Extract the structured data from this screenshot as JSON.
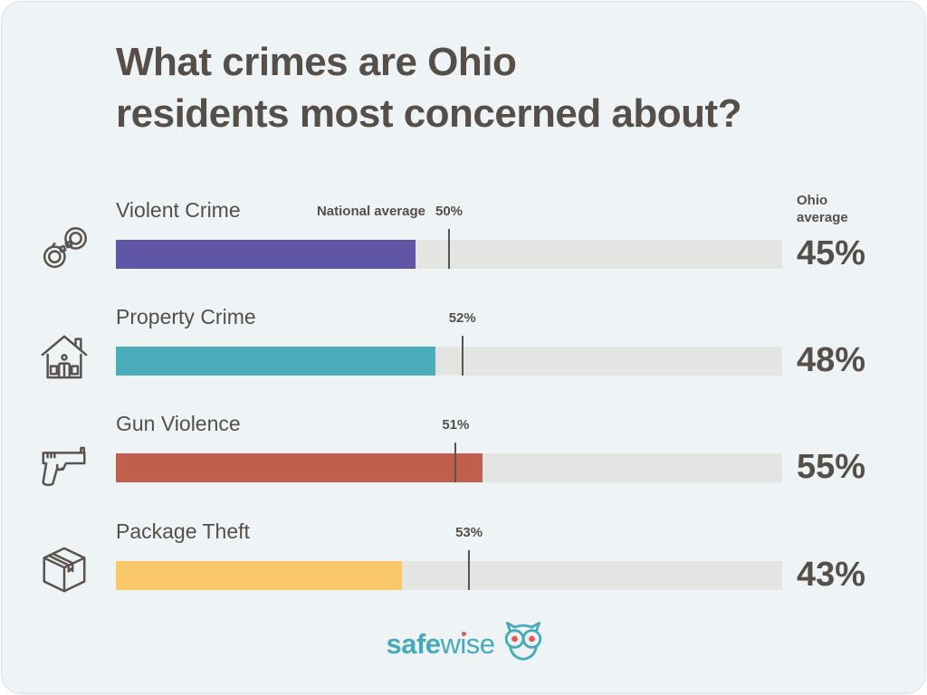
{
  "title": {
    "line1": "What crimes are Ohio",
    "line2": "residents most concerned about?"
  },
  "ohio_average_header": "Ohio average",
  "rows": [
    {
      "label": "Violent Crime",
      "icon": "handcuffs-icon",
      "color": "#6156a5",
      "ohio_value": "45%",
      "ohio_pct": 45,
      "national_caption": "National average",
      "national_value": "50%",
      "national_pct": 50
    },
    {
      "label": "Property Crime",
      "icon": "house-icon",
      "color": "#4bacba",
      "ohio_value": "48%",
      "ohio_pct": 48,
      "national_value": "52%",
      "national_pct": 52
    },
    {
      "label": "Gun Violence",
      "icon": "gun-icon",
      "color": "#c05f4c",
      "ohio_value": "55%",
      "ohio_pct": 55,
      "national_value": "51%",
      "national_pct": 51
    },
    {
      "label": "Package Theft",
      "icon": "package-icon",
      "color": "#f9c868",
      "ohio_value": "43%",
      "ohio_pct": 43,
      "national_value": "53%",
      "national_pct": 53
    }
  ],
  "logo": {
    "brand_bold": "safe",
    "brand_light": "wise",
    "owl_icon": "owl-glasses-icon"
  },
  "colors": {
    "card_background": "#eef3f5",
    "bar_track": "#e4e4e2",
    "text": "#564e49",
    "tick": "#5a544f",
    "logo_teal": "#45aabb",
    "owl_eye": "#e25a4d"
  },
  "chart_data": {
    "type": "bar",
    "orientation": "horizontal",
    "title": "What crimes are Ohio residents most concerned about?",
    "categories": [
      "Violent Crime",
      "Property Crime",
      "Gun Violence",
      "Package Theft"
    ],
    "series": [
      {
        "name": "Ohio average",
        "values": [
          45,
          48,
          55,
          43
        ]
      },
      {
        "name": "National average",
        "values": [
          50,
          52,
          51,
          53
        ]
      }
    ],
    "unit": "%",
    "xlim": [
      0,
      100
    ],
    "grid": false,
    "legend_position": "inline-labels"
  }
}
